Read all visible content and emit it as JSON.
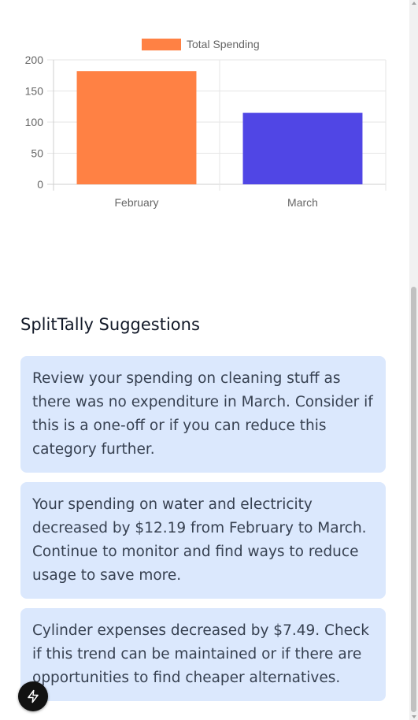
{
  "chart_data": {
    "type": "bar",
    "categories": [
      "February",
      "March"
    ],
    "series": [
      {
        "name": "Total Spending",
        "values": [
          182,
          115
        ]
      }
    ],
    "bar_colors": [
      "#ff8144",
      "#5046e5"
    ],
    "legend_color": "#ff8144",
    "ylim": [
      0,
      200
    ],
    "yticks": [
      "200",
      "150",
      "100",
      "50",
      "0"
    ],
    "grid": true,
    "legend_position": "top"
  },
  "suggestions": {
    "title": "SplitTally Suggestions",
    "items": [
      {
        "text": "Review your spending on cleaning stuff as there was no expenditure in March. Consider if this is a one-off or if you can reduce this category further."
      },
      {
        "text": "Your spending on water and electricity decreased by $12.19 from February to March. Continue to monitor and find ways to reduce usage to save more."
      },
      {
        "text": "Cylinder expenses decreased by $7.49. Check if this trend can be maintained or if there are opportunities to find cheaper alternatives."
      }
    ]
  },
  "fab": {
    "icon": "lightning-icon"
  }
}
